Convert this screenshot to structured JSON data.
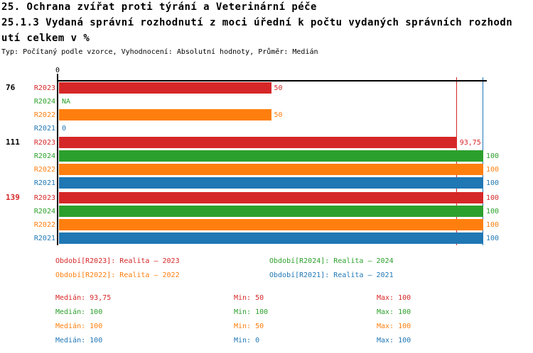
{
  "header": {
    "title_line1": "25. Ochrana zvířat proti týrání a Veterinární péče",
    "title_line2": "25.1.3 Vydaná správní rozhodnutí z moci úřední k počtu vydaných správních rozhodn",
    "title_line3": "utí celkem v %",
    "subtitle": "Typ: Počítaný podle vzorce, Vyhodnocení: Absolutní hodnoty, Průměr: Medián"
  },
  "colors": {
    "R2023": "#d62728",
    "R2024": "#2ca02c",
    "R2022": "#ff7f0e",
    "R2021": "#1f77b4",
    "axis": "#000000",
    "background": "#ffffff"
  },
  "chart_data": {
    "type": "bar",
    "orientation": "horizontal",
    "title": "25.1.3 Vydaná správní rozhodnutí z moci úřední k počtu vydaných správních rozhodnutí celkem v %",
    "xlim": [
      0,
      100
    ],
    "axis_tick_label": "0",
    "grid": false,
    "series_order": [
      "R2023",
      "R2024",
      "R2022",
      "R2021"
    ],
    "groups": [
      {
        "label": "76",
        "label_color": "#000000",
        "rows": [
          {
            "series": "R2023",
            "value": 50,
            "display": "50"
          },
          {
            "series": "R2024",
            "value": null,
            "display": "NA"
          },
          {
            "series": "R2022",
            "value": 50,
            "display": "50"
          },
          {
            "series": "R2021",
            "value": 0,
            "display": "0"
          }
        ]
      },
      {
        "label": "111",
        "label_color": "#000000",
        "rows": [
          {
            "series": "R2023",
            "value": 93.75,
            "display": "93,75"
          },
          {
            "series": "R2024",
            "value": 100,
            "display": "100"
          },
          {
            "series": "R2022",
            "value": 100,
            "display": "100"
          },
          {
            "series": "R2021",
            "value": 100,
            "display": "100"
          }
        ]
      },
      {
        "label": "139",
        "label_color": "#d62728",
        "rows": [
          {
            "series": "R2023",
            "value": 100,
            "display": "100"
          },
          {
            "series": "R2024",
            "value": 100,
            "display": "100"
          },
          {
            "series": "R2022",
            "value": 100,
            "display": "100"
          },
          {
            "series": "R2021",
            "value": 100,
            "display": "100"
          }
        ]
      }
    ],
    "reference_lines": [
      {
        "value": 93.75,
        "color": "#d62728"
      },
      {
        "value": 100,
        "color": "#1f77b4"
      }
    ],
    "stats_summary": {
      "R2023": {
        "median": 93.75,
        "min": 50,
        "max": 100
      },
      "R2024": {
        "median": 100,
        "min": 100,
        "max": 100
      },
      "R2022": {
        "median": 100,
        "min": 50,
        "max": 100
      },
      "R2021": {
        "median": 100,
        "min": 0,
        "max": 100
      }
    }
  },
  "legend": {
    "items": [
      {
        "label": "Období[R2023]: Realita – 2023",
        "color": "#d62728"
      },
      {
        "label": "Období[R2024]: Realita – 2024",
        "color": "#2ca02c"
      },
      {
        "label": "Období[R2022]: Realita – 2022",
        "color": "#ff7f0e"
      },
      {
        "label": "Období[R2021]: Realita – 2021",
        "color": "#1f77b4"
      }
    ]
  },
  "stats": {
    "rows": [
      {
        "color": "#d62728",
        "median": "Medián: 93,75",
        "min": "Min: 50",
        "max": "Max: 100"
      },
      {
        "color": "#2ca02c",
        "median": "Medián: 100",
        "min": "Min: 100",
        "max": "Max: 100"
      },
      {
        "color": "#ff7f0e",
        "median": "Medián: 100",
        "min": "Min: 50",
        "max": "Max: 100"
      },
      {
        "color": "#1f77b4",
        "median": "Medián: 100",
        "min": "Min: 0",
        "max": "Max: 100"
      }
    ]
  }
}
